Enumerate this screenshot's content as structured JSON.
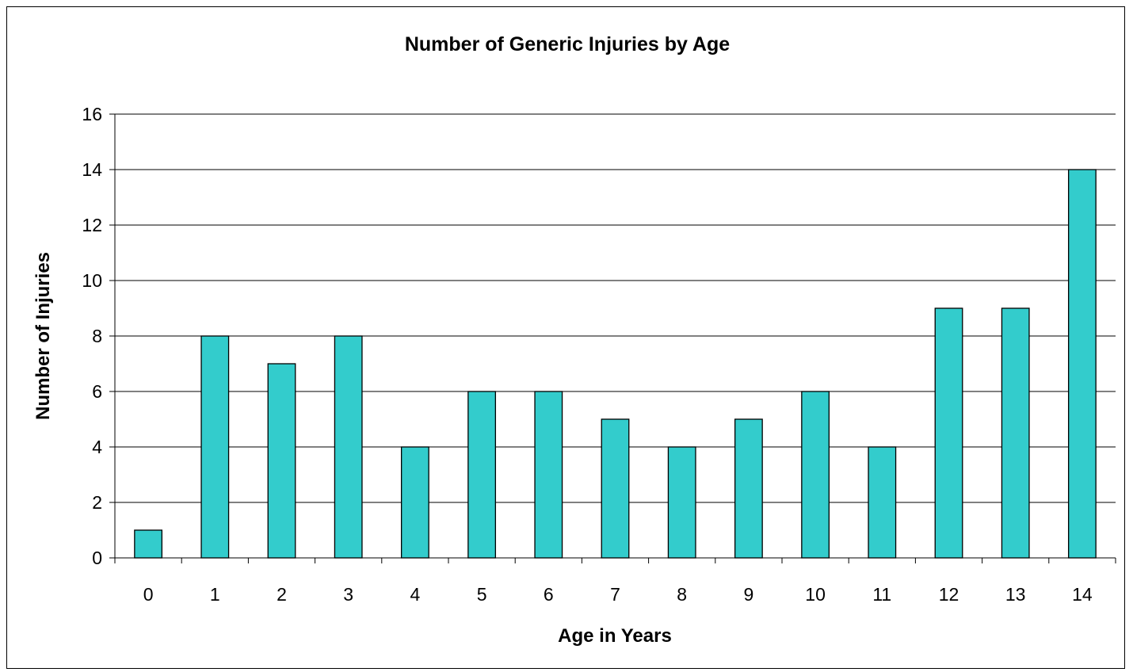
{
  "chart_data": {
    "type": "bar",
    "title": "Number of Generic Injuries by Age",
    "xlabel": "Age in Years",
    "ylabel": "Number of Injuries",
    "categories": [
      "0",
      "1",
      "2",
      "3",
      "4",
      "5",
      "6",
      "7",
      "8",
      "9",
      "10",
      "11",
      "12",
      "13",
      "14"
    ],
    "values": [
      1,
      8,
      7,
      8,
      4,
      6,
      6,
      5,
      4,
      5,
      6,
      4,
      9,
      9,
      14
    ],
    "ylim": [
      0,
      16
    ],
    "yticks": [
      "0",
      "2",
      "4",
      "6",
      "8",
      "10",
      "12",
      "14",
      "16"
    ],
    "grid": true,
    "legend": "none",
    "bar_color": "#33cccc"
  }
}
